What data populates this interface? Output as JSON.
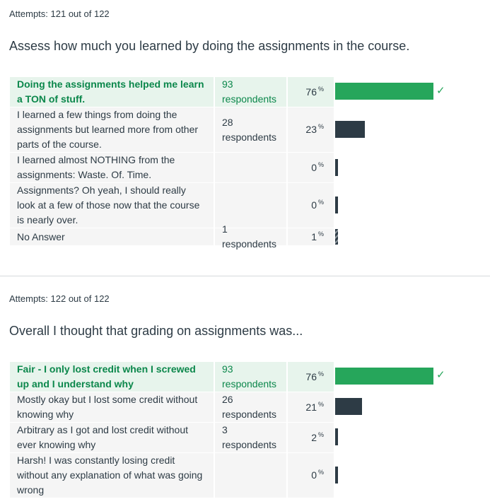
{
  "questions": [
    {
      "attempts": "Attempts: 121 out of 122",
      "question": "Assess how much you learned by doing the assignments in the course.",
      "answers": [
        {
          "text": "Doing the assignments helped me learn a TON of stuff.",
          "respondents": "93 respondents",
          "percent": "76",
          "fraction": 0.76,
          "correct": true
        },
        {
          "text": "I learned a few things from doing the assignments but learned more from other parts of the course.",
          "respondents": "28 respondents",
          "percent": "23",
          "fraction": 0.23,
          "correct": false
        },
        {
          "text": "I learned almost NOTHING from the assignments: Waste. Of. Time.",
          "respondents": "",
          "percent": "0",
          "fraction": 0.0,
          "correct": false
        },
        {
          "text": "Assignments? Oh yeah, I should really look at a few of those now that the course is nearly over.",
          "respondents": "",
          "percent": "0",
          "fraction": 0.0,
          "correct": false
        },
        {
          "text": "No Answer",
          "respondents": "1 respondents",
          "percent": "1",
          "fraction": 0.01,
          "correct": false,
          "no_answer": true
        }
      ]
    },
    {
      "attempts": "Attempts: 122 out of 122",
      "question": "Overall I thought that grading on assignments was...",
      "answers": [
        {
          "text": "Fair - I only lost credit when I screwed up and I understand why",
          "respondents": "93 respondents",
          "percent": "76",
          "fraction": 0.76,
          "correct": true
        },
        {
          "text": "Mostly okay but I lost some credit without knowing why",
          "respondents": "26 respondents",
          "percent": "21",
          "fraction": 0.21,
          "correct": false
        },
        {
          "text": "Arbitrary as I got and lost credit without ever knowing why",
          "respondents": "3 respondents",
          "percent": "2",
          "fraction": 0.02,
          "correct": false
        },
        {
          "text": "Harsh! I was constantly losing credit without any explanation of what was going wrong",
          "respondents": "",
          "percent": "0",
          "fraction": 0.0,
          "correct": false
        }
      ]
    }
  ],
  "percent_symbol": "%",
  "check_icon": "checkmark-icon",
  "colors": {
    "correct_bar": "#26a65b",
    "bar": "#2d3b45",
    "correct_bg": "#e7f4ec",
    "row_bg": "#f5f5f5",
    "correct_text": "#0b874b"
  }
}
